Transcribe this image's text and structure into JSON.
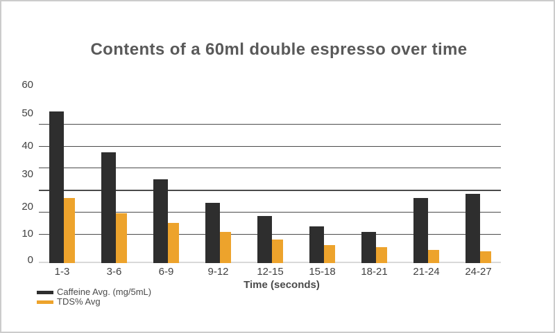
{
  "frame": {
    "background": "#ffffff",
    "border_color": "#cccccc"
  },
  "chart_data": {
    "type": "bar",
    "title": "Contents of a 60ml double espresso over time",
    "xlabel": "Time (seconds)",
    "ylabel": "",
    "categories": [
      "1-3",
      "3-6",
      "6-9",
      "9-12",
      "12-15",
      "15-18",
      "18-21",
      "21-24",
      "24-27"
    ],
    "series": [
      {
        "name": "Caffeine Avg. (mg/5mL)",
        "color": "#2e2e2e",
        "values": [
          51.5,
          37.5,
          28.5,
          20.5,
          16,
          12.5,
          10.5,
          22,
          23.5
        ]
      },
      {
        "name": "TDS% Avg",
        "color": "#eda32c",
        "values": [
          22,
          17,
          13.5,
          10.5,
          8,
          6,
          5.5,
          4.5,
          4
        ]
      }
    ],
    "ylim": [
      0,
      60
    ],
    "yticks": [
      0,
      10,
      20,
      30,
      40,
      50,
      60
    ],
    "grid": true,
    "legend_position": "bottom-left"
  },
  "colors": {
    "title_text": "#595959",
    "axis_text": "#404040",
    "gridline": "#4a4a4a",
    "baseline": "#d9d9d9"
  }
}
